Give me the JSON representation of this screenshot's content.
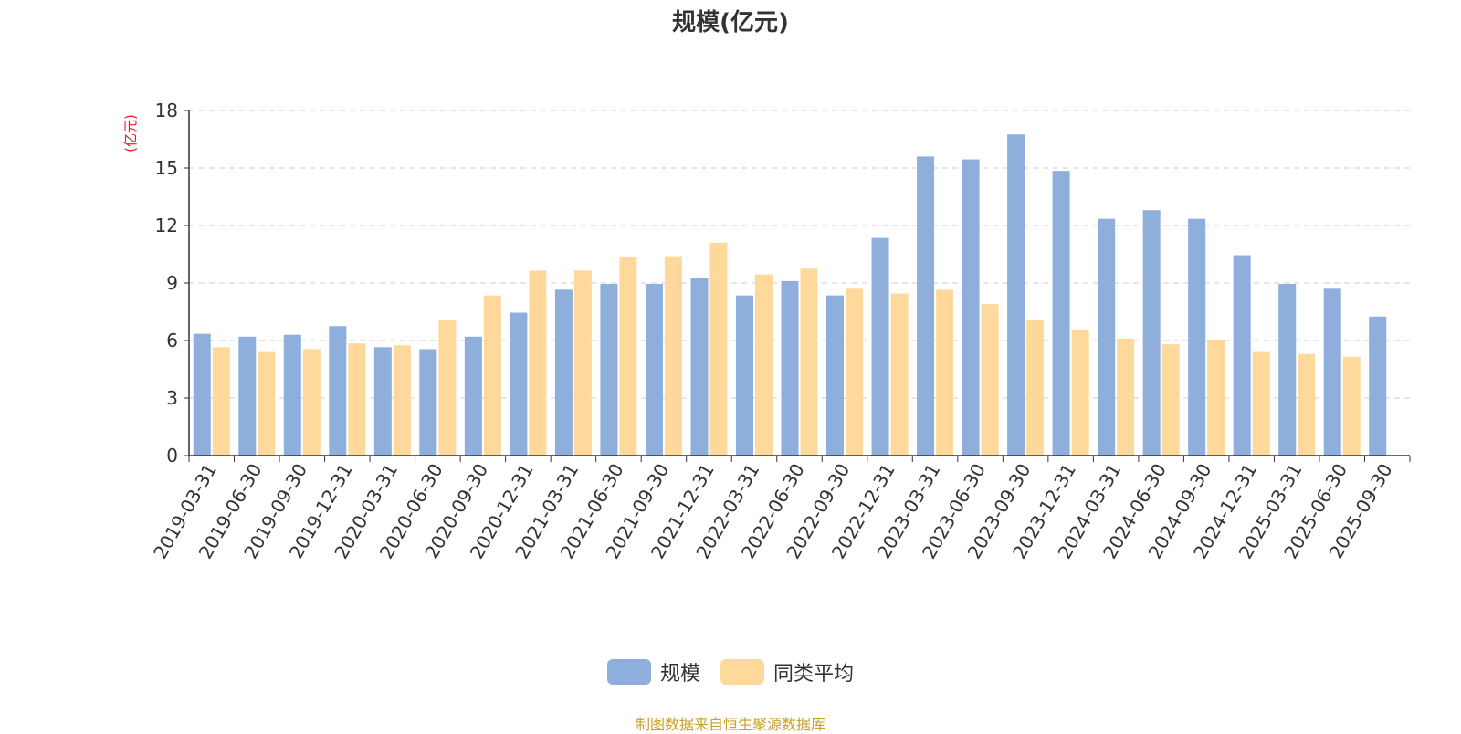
{
  "chart_data": {
    "type": "bar",
    "title": "规模(亿元)",
    "ylabel": "(亿元)",
    "xlabel": "",
    "ylim": [
      0,
      18
    ],
    "yticks": [
      0,
      3,
      6,
      9,
      12,
      15,
      18
    ],
    "grid": true,
    "legend_position": "bottom-center",
    "categories": [
      "2019-03-31",
      "2019-06-30",
      "2019-09-30",
      "2019-12-31",
      "2020-03-31",
      "2020-06-30",
      "2020-09-30",
      "2020-12-31",
      "2021-03-31",
      "2021-06-30",
      "2021-09-30",
      "2021-12-31",
      "2022-03-31",
      "2022-06-30",
      "2022-09-30",
      "2022-12-31",
      "2023-03-31",
      "2023-06-30",
      "2023-09-30",
      "2023-12-31",
      "2024-03-31",
      "2024-06-30",
      "2024-09-30",
      "2024-12-31",
      "2025-03-31",
      "2025-06-30",
      "2025-09-30"
    ],
    "series": [
      {
        "name": "规模",
        "color": "#8eaedb",
        "values": [
          6.35,
          6.2,
          6.3,
          6.75,
          5.65,
          5.55,
          6.2,
          7.45,
          8.65,
          8.95,
          8.95,
          9.25,
          8.35,
          9.1,
          8.35,
          11.35,
          15.6,
          15.45,
          16.75,
          14.85,
          12.35,
          12.8,
          12.35,
          10.45,
          8.95,
          8.7,
          7.25
        ]
      },
      {
        "name": "同类平均",
        "color": "#fed99b",
        "values": [
          5.65,
          5.4,
          5.55,
          5.85,
          5.75,
          7.05,
          8.35,
          9.65,
          9.65,
          10.35,
          10.4,
          11.1,
          9.45,
          9.75,
          8.7,
          8.45,
          8.65,
          7.9,
          7.1,
          6.55,
          6.1,
          5.8,
          6.05,
          5.4,
          5.3,
          5.15,
          null
        ]
      }
    ]
  },
  "legend": {
    "items": [
      {
        "label": "规模",
        "color": "#8eaedb"
      },
      {
        "label": "同类平均",
        "color": "#fed99b"
      }
    ]
  },
  "source_note": "制图数据来自恒生聚源数据库",
  "colors": {
    "axis": "#333333",
    "grid": "#cccccc",
    "ylabel": "#e02020",
    "text": "#333333"
  }
}
